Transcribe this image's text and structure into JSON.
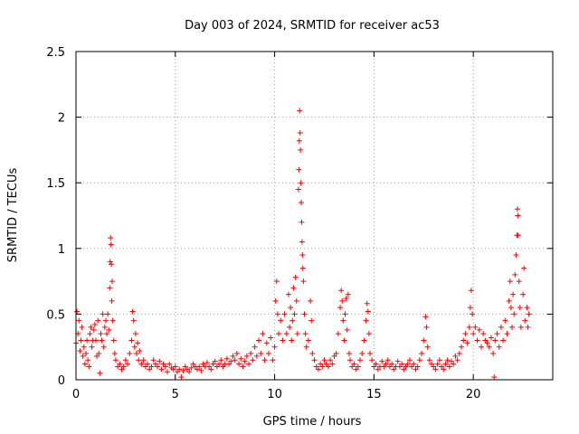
{
  "chart_data": {
    "type": "scatter",
    "title": "Day 003 of 2024, SRMTID for receiver ac53",
    "xlabel": "GPS time / hours",
    "ylabel": "SRMTID / TECUs",
    "xlim": [
      0,
      24
    ],
    "ylim": [
      0,
      2.5
    ],
    "xticks": [
      0,
      5,
      10,
      15,
      20
    ],
    "xtick_labels": [
      "0",
      "5",
      "10",
      "15",
      "20"
    ],
    "yticks": [
      0,
      0.5,
      1,
      1.5,
      2,
      2.5
    ],
    "ytick_labels": [
      "0",
      "0.5",
      "1",
      "1.5",
      "2",
      "2.5"
    ],
    "grid": true,
    "marker": "+",
    "color": "#ff0000",
    "series": [
      {
        "name": "SRMTID",
        "points": [
          [
            0.0,
            0.28
          ],
          [
            0.05,
            0.52
          ],
          [
            0.1,
            0.35
          ],
          [
            0.15,
            0.45
          ],
          [
            0.2,
            0.22
          ],
          [
            0.25,
            0.3
          ],
          [
            0.3,
            0.4
          ],
          [
            0.35,
            0.18
          ],
          [
            0.4,
            0.25
          ],
          [
            0.45,
            0.12
          ],
          [
            0.5,
            0.2
          ],
          [
            0.55,
            0.3
          ],
          [
            0.6,
            0.15
          ],
          [
            0.65,
            0.1
          ],
          [
            0.7,
            0.35
          ],
          [
            0.75,
            0.4
          ],
          [
            0.8,
            0.25
          ],
          [
            0.85,
            0.3
          ],
          [
            0.9,
            0.38
          ],
          [
            0.95,
            0.42
          ],
          [
            1.0,
            0.3
          ],
          [
            1.05,
            0.18
          ],
          [
            1.1,
            0.45
          ],
          [
            1.15,
            0.2
          ],
          [
            1.2,
            0.05
          ],
          [
            1.25,
            0.35
          ],
          [
            1.3,
            0.3
          ],
          [
            1.35,
            0.5
          ],
          [
            1.4,
            0.25
          ],
          [
            1.45,
            0.4
          ],
          [
            1.5,
            0.45
          ],
          [
            1.55,
            0.35
          ],
          [
            1.6,
            0.5
          ],
          [
            1.65,
            0.38
          ],
          [
            1.7,
            0.7
          ],
          [
            1.72,
            0.9
          ],
          [
            1.74,
            1.08
          ],
          [
            1.76,
            1.03
          ],
          [
            1.78,
            0.88
          ],
          [
            1.8,
            0.6
          ],
          [
            1.82,
            0.75
          ],
          [
            1.85,
            0.45
          ],
          [
            1.9,
            0.3
          ],
          [
            1.95,
            0.2
          ],
          [
            2.0,
            0.15
          ],
          [
            2.1,
            0.1
          ],
          [
            2.2,
            0.12
          ],
          [
            2.3,
            0.08
          ],
          [
            2.4,
            0.1
          ],
          [
            2.5,
            0.15
          ],
          [
            2.6,
            0.12
          ],
          [
            2.7,
            0.2
          ],
          [
            2.8,
            0.3
          ],
          [
            2.85,
            0.52
          ],
          [
            2.9,
            0.45
          ],
          [
            2.95,
            0.25
          ],
          [
            3.0,
            0.35
          ],
          [
            3.05,
            0.2
          ],
          [
            3.1,
            0.28
          ],
          [
            3.15,
            0.15
          ],
          [
            3.2,
            0.22
          ],
          [
            3.3,
            0.12
          ],
          [
            3.4,
            0.15
          ],
          [
            3.5,
            0.1
          ],
          [
            3.6,
            0.12
          ],
          [
            3.7,
            0.08
          ],
          [
            3.8,
            0.1
          ],
          [
            3.9,
            0.15
          ],
          [
            4.0,
            0.12
          ],
          [
            4.1,
            0.1
          ],
          [
            4.2,
            0.14
          ],
          [
            4.3,
            0.08
          ],
          [
            4.4,
            0.12
          ],
          [
            4.5,
            0.1
          ],
          [
            4.6,
            0.06
          ],
          [
            4.7,
            0.12
          ],
          [
            4.8,
            0.09
          ],
          [
            4.9,
            0.08
          ],
          [
            5.0,
            0.1
          ],
          [
            5.1,
            0.06
          ],
          [
            5.2,
            0.08
          ],
          [
            5.3,
            0.02
          ],
          [
            5.4,
            0.07
          ],
          [
            5.5,
            0.1
          ],
          [
            5.6,
            0.08
          ],
          [
            5.7,
            0.06
          ],
          [
            5.8,
            0.09
          ],
          [
            5.9,
            0.12
          ],
          [
            6.0,
            0.1
          ],
          [
            6.1,
            0.08
          ],
          [
            6.2,
            0.1
          ],
          [
            6.3,
            0.07
          ],
          [
            6.4,
            0.12
          ],
          [
            6.5,
            0.1
          ],
          [
            6.6,
            0.13
          ],
          [
            6.7,
            0.1
          ],
          [
            6.8,
            0.08
          ],
          [
            6.9,
            0.12
          ],
          [
            7.0,
            0.14
          ],
          [
            7.1,
            0.1
          ],
          [
            7.2,
            0.12
          ],
          [
            7.3,
            0.15
          ],
          [
            7.4,
            0.1
          ],
          [
            7.5,
            0.12
          ],
          [
            7.6,
            0.16
          ],
          [
            7.7,
            0.12
          ],
          [
            7.8,
            0.14
          ],
          [
            7.9,
            0.18
          ],
          [
            8.0,
            0.15
          ],
          [
            8.1,
            0.2
          ],
          [
            8.2,
            0.12
          ],
          [
            8.3,
            0.16
          ],
          [
            8.4,
            0.1
          ],
          [
            8.5,
            0.14
          ],
          [
            8.6,
            0.18
          ],
          [
            8.7,
            0.12
          ],
          [
            8.8,
            0.2
          ],
          [
            8.9,
            0.15
          ],
          [
            9.0,
            0.25
          ],
          [
            9.1,
            0.18
          ],
          [
            9.2,
            0.3
          ],
          [
            9.3,
            0.2
          ],
          [
            9.4,
            0.35
          ],
          [
            9.5,
            0.15
          ],
          [
            9.6,
            0.28
          ],
          [
            9.7,
            0.2
          ],
          [
            9.8,
            0.32
          ],
          [
            9.9,
            0.15
          ],
          [
            10.0,
            0.25
          ],
          [
            10.05,
            0.6
          ],
          [
            10.1,
            0.75
          ],
          [
            10.15,
            0.5
          ],
          [
            10.2,
            0.35
          ],
          [
            10.3,
            0.45
          ],
          [
            10.4,
            0.3
          ],
          [
            10.5,
            0.5
          ],
          [
            10.6,
            0.35
          ],
          [
            10.7,
            0.65
          ],
          [
            10.75,
            0.4
          ],
          [
            10.8,
            0.55
          ],
          [
            10.85,
            0.3
          ],
          [
            10.9,
            0.45
          ],
          [
            10.95,
            0.7
          ],
          [
            11.0,
            0.5
          ],
          [
            11.05,
            0.78
          ],
          [
            11.1,
            0.6
          ],
          [
            11.15,
            0.35
          ],
          [
            11.2,
            1.45
          ],
          [
            11.22,
            1.6
          ],
          [
            11.24,
            1.82
          ],
          [
            11.26,
            2.05
          ],
          [
            11.28,
            1.88
          ],
          [
            11.3,
            1.75
          ],
          [
            11.32,
            1.5
          ],
          [
            11.34,
            1.35
          ],
          [
            11.36,
            1.2
          ],
          [
            11.38,
            1.05
          ],
          [
            11.4,
            0.95
          ],
          [
            11.42,
            0.85
          ],
          [
            11.45,
            0.75
          ],
          [
            11.5,
            0.5
          ],
          [
            11.55,
            0.35
          ],
          [
            11.6,
            0.25
          ],
          [
            11.7,
            0.3
          ],
          [
            11.8,
            0.6
          ],
          [
            11.85,
            0.45
          ],
          [
            11.9,
            0.2
          ],
          [
            12.0,
            0.15
          ],
          [
            12.1,
            0.1
          ],
          [
            12.2,
            0.08
          ],
          [
            12.3,
            0.12
          ],
          [
            12.4,
            0.1
          ],
          [
            12.5,
            0.15
          ],
          [
            12.6,
            0.12
          ],
          [
            12.7,
            0.1
          ],
          [
            12.8,
            0.15
          ],
          [
            12.9,
            0.12
          ],
          [
            13.0,
            0.18
          ],
          [
            13.1,
            0.2
          ],
          [
            13.2,
            0.35
          ],
          [
            13.3,
            0.55
          ],
          [
            13.35,
            0.68
          ],
          [
            13.4,
            0.6
          ],
          [
            13.45,
            0.45
          ],
          [
            13.5,
            0.3
          ],
          [
            13.55,
            0.5
          ],
          [
            13.6,
            0.62
          ],
          [
            13.65,
            0.38
          ],
          [
            13.7,
            0.65
          ],
          [
            13.75,
            0.2
          ],
          [
            13.8,
            0.15
          ],
          [
            13.9,
            0.1
          ],
          [
            14.0,
            0.12
          ],
          [
            14.1,
            0.08
          ],
          [
            14.2,
            0.1
          ],
          [
            14.3,
            0.15
          ],
          [
            14.4,
            0.2
          ],
          [
            14.5,
            0.3
          ],
          [
            14.6,
            0.45
          ],
          [
            14.65,
            0.58
          ],
          [
            14.7,
            0.52
          ],
          [
            14.75,
            0.35
          ],
          [
            14.8,
            0.2
          ],
          [
            14.9,
            0.15
          ],
          [
            15.0,
            0.1
          ],
          [
            15.1,
            0.12
          ],
          [
            15.2,
            0.08
          ],
          [
            15.3,
            0.1
          ],
          [
            15.4,
            0.14
          ],
          [
            15.5,
            0.1
          ],
          [
            15.6,
            0.12
          ],
          [
            15.7,
            0.15
          ],
          [
            15.8,
            0.1
          ],
          [
            15.9,
            0.12
          ],
          [
            16.0,
            0.08
          ],
          [
            16.1,
            0.1
          ],
          [
            16.2,
            0.14
          ],
          [
            16.3,
            0.1
          ],
          [
            16.4,
            0.12
          ],
          [
            16.5,
            0.08
          ],
          [
            16.6,
            0.1
          ],
          [
            16.7,
            0.12
          ],
          [
            16.8,
            0.15
          ],
          [
            16.9,
            0.1
          ],
          [
            17.0,
            0.12
          ],
          [
            17.1,
            0.08
          ],
          [
            17.2,
            0.1
          ],
          [
            17.3,
            0.15
          ],
          [
            17.4,
            0.2
          ],
          [
            17.5,
            0.3
          ],
          [
            17.6,
            0.48
          ],
          [
            17.65,
            0.4
          ],
          [
            17.7,
            0.25
          ],
          [
            17.8,
            0.15
          ],
          [
            17.9,
            0.12
          ],
          [
            18.0,
            0.1
          ],
          [
            18.1,
            0.08
          ],
          [
            18.2,
            0.12
          ],
          [
            18.3,
            0.15
          ],
          [
            18.4,
            0.1
          ],
          [
            18.5,
            0.08
          ],
          [
            18.6,
            0.12
          ],
          [
            18.7,
            0.15
          ],
          [
            18.8,
            0.1
          ],
          [
            18.9,
            0.14
          ],
          [
            19.0,
            0.12
          ],
          [
            19.1,
            0.18
          ],
          [
            19.2,
            0.15
          ],
          [
            19.3,
            0.2
          ],
          [
            19.4,
            0.25
          ],
          [
            19.5,
            0.3
          ],
          [
            19.6,
            0.35
          ],
          [
            19.7,
            0.28
          ],
          [
            19.8,
            0.4
          ],
          [
            19.85,
            0.55
          ],
          [
            19.9,
            0.68
          ],
          [
            19.95,
            0.5
          ],
          [
            20.0,
            0.35
          ],
          [
            20.1,
            0.4
          ],
          [
            20.2,
            0.3
          ],
          [
            20.3,
            0.38
          ],
          [
            20.4,
            0.25
          ],
          [
            20.5,
            0.35
          ],
          [
            20.6,
            0.3
          ],
          [
            20.7,
            0.28
          ],
          [
            20.8,
            0.25
          ],
          [
            20.9,
            0.32
          ],
          [
            21.0,
            0.2
          ],
          [
            21.05,
            0.02
          ],
          [
            21.1,
            0.3
          ],
          [
            21.2,
            0.35
          ],
          [
            21.3,
            0.25
          ],
          [
            21.4,
            0.4
          ],
          [
            21.5,
            0.3
          ],
          [
            21.6,
            0.45
          ],
          [
            21.7,
            0.35
          ],
          [
            21.8,
            0.6
          ],
          [
            21.85,
            0.75
          ],
          [
            21.9,
            0.55
          ],
          [
            21.95,
            0.4
          ],
          [
            22.0,
            0.65
          ],
          [
            22.05,
            0.5
          ],
          [
            22.1,
            0.8
          ],
          [
            22.15,
            0.95
          ],
          [
            22.2,
            1.1
          ],
          [
            22.22,
            1.3
          ],
          [
            22.24,
            1.25
          ],
          [
            22.26,
            1.1
          ],
          [
            22.3,
            0.75
          ],
          [
            22.35,
            0.55
          ],
          [
            22.4,
            0.4
          ],
          [
            22.5,
            0.65
          ],
          [
            22.55,
            0.85
          ],
          [
            22.6,
            0.45
          ],
          [
            22.7,
            0.55
          ],
          [
            22.75,
            0.4
          ],
          [
            22.8,
            0.5
          ]
        ]
      }
    ]
  }
}
